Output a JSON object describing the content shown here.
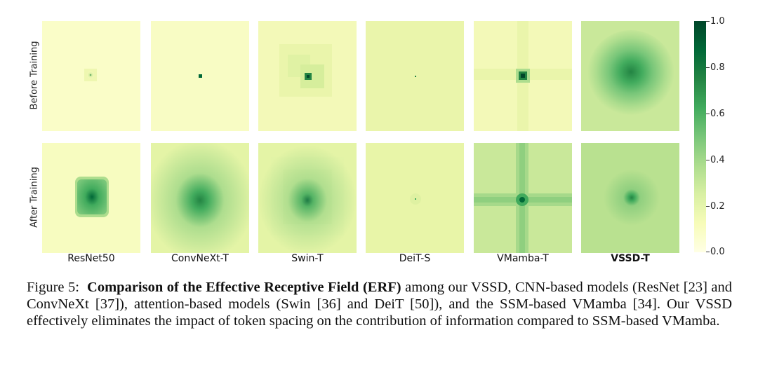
{
  "row_labels": [
    "Before Training",
    "After Training"
  ],
  "column_labels": [
    "ResNet50",
    "ConvNeXt-T",
    "Swin-T",
    "DeiT-S",
    "VMamba-T",
    "VSSD-T"
  ],
  "colorbar": {
    "min": 0.0,
    "max": 1.0,
    "ticks": [
      "1.0",
      "0.8",
      "0.6",
      "0.4",
      "0.2",
      "0.0"
    ],
    "colors": {
      "low": "#ffffe5",
      "mid": "#78c679",
      "high": "#004529"
    }
  },
  "caption": {
    "prefix": "Figure 5:",
    "bold": "Comparison of the Effective Receptive Field (ERF)",
    "rest": " among our VSSD, CNN-based models (ResNet [23] and ConvNeXt [37]), attention-based models (Swin [36] and DeiT [50]), and the SSM-based VMamba [34]. Our VSSD effectively eliminates the impact of token spacing on the contribution of information compared to SSM-based VMamba."
  }
}
